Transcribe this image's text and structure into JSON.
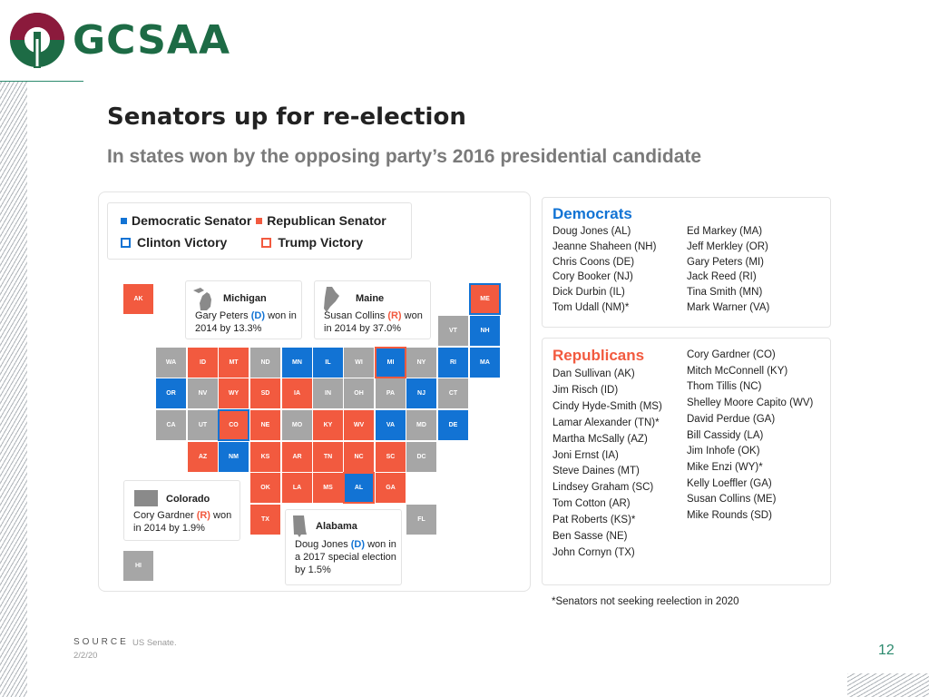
{
  "header": {
    "logo_text": "GCSAA",
    "title": "Senators up for re-election",
    "subtitle": "In states won by the opposing party’s 2016 presidential candidate"
  },
  "colors": {
    "democratic": "#1273d4",
    "republican": "#f25a3f",
    "neutral": "#a6a6a6",
    "brand_green": "#1d6b45",
    "logo_maroon": "#8b1a3c"
  },
  "legend": {
    "dem_senator": "Democratic Senator",
    "rep_senator": "Republican Senator",
    "clinton_victory": "Clinton Victory",
    "trump_victory": "Trump Victory"
  },
  "states": [
    {
      "code": "AK",
      "party": "R",
      "highlight": false
    },
    {
      "code": "ME",
      "party": "R",
      "highlight": true
    },
    {
      "code": "VT",
      "party": "N",
      "highlight": false
    },
    {
      "code": "NH",
      "party": "D",
      "highlight": false
    },
    {
      "code": "WA",
      "party": "N",
      "highlight": false
    },
    {
      "code": "ID",
      "party": "R",
      "highlight": false
    },
    {
      "code": "MT",
      "party": "R",
      "highlight": false
    },
    {
      "code": "ND",
      "party": "N",
      "highlight": false
    },
    {
      "code": "MN",
      "party": "D",
      "highlight": false
    },
    {
      "code": "IL",
      "party": "D",
      "highlight": false
    },
    {
      "code": "WI",
      "party": "N",
      "highlight": false
    },
    {
      "code": "MI",
      "party": "D",
      "highlight": true
    },
    {
      "code": "NY",
      "party": "N",
      "highlight": false
    },
    {
      "code": "RI",
      "party": "D",
      "highlight": false
    },
    {
      "code": "MA",
      "party": "D",
      "highlight": false
    },
    {
      "code": "OR",
      "party": "D",
      "highlight": false
    },
    {
      "code": "NV",
      "party": "N",
      "highlight": false
    },
    {
      "code": "WY",
      "party": "R",
      "highlight": false
    },
    {
      "code": "SD",
      "party": "R",
      "highlight": false
    },
    {
      "code": "IA",
      "party": "R",
      "highlight": false
    },
    {
      "code": "IN",
      "party": "N",
      "highlight": false
    },
    {
      "code": "OH",
      "party": "N",
      "highlight": false
    },
    {
      "code": "PA",
      "party": "N",
      "highlight": false
    },
    {
      "code": "NJ",
      "party": "D",
      "highlight": false
    },
    {
      "code": "CT",
      "party": "N",
      "highlight": false
    },
    {
      "code": "CA",
      "party": "N",
      "highlight": false
    },
    {
      "code": "UT",
      "party": "N",
      "highlight": false
    },
    {
      "code": "CO",
      "party": "R",
      "highlight": true
    },
    {
      "code": "NE",
      "party": "R",
      "highlight": false
    },
    {
      "code": "MO",
      "party": "N",
      "highlight": false
    },
    {
      "code": "KY",
      "party": "R",
      "highlight": false
    },
    {
      "code": "WV",
      "party": "R",
      "highlight": false
    },
    {
      "code": "VA",
      "party": "D",
      "highlight": false
    },
    {
      "code": "MD",
      "party": "N",
      "highlight": false
    },
    {
      "code": "DE",
      "party": "D",
      "highlight": false
    },
    {
      "code": "AZ",
      "party": "R",
      "highlight": false
    },
    {
      "code": "NM",
      "party": "D",
      "highlight": false
    },
    {
      "code": "KS",
      "party": "R",
      "highlight": false
    },
    {
      "code": "AR",
      "party": "R",
      "highlight": false
    },
    {
      "code": "TN",
      "party": "R",
      "highlight": false
    },
    {
      "code": "NC",
      "party": "R",
      "highlight": false
    },
    {
      "code": "SC",
      "party": "R",
      "highlight": false
    },
    {
      "code": "DC",
      "party": "N",
      "highlight": false
    },
    {
      "code": "OK",
      "party": "R",
      "highlight": false
    },
    {
      "code": "LA",
      "party": "R",
      "highlight": false
    },
    {
      "code": "MS",
      "party": "R",
      "highlight": false
    },
    {
      "code": "AL",
      "party": "D",
      "highlight": true
    },
    {
      "code": "GA",
      "party": "R",
      "highlight": false
    },
    {
      "code": "TX",
      "party": "R",
      "highlight": false
    },
    {
      "code": "FL",
      "party": "N",
      "highlight": false
    },
    {
      "code": "HI",
      "party": "N",
      "highlight": false
    }
  ],
  "callouts": {
    "michigan": {
      "title": "Michigan",
      "pre": "Gary Peters ",
      "party": "(D)",
      "post": " won in 2014 by 13.3%"
    },
    "maine": {
      "title": "Maine",
      "pre": "Susan Collins ",
      "party": "(R)",
      "post": " won in 2014 by 37.0%"
    },
    "colorado": {
      "title": "Colorado",
      "pre": "Cory Gardner ",
      "party": "(R)",
      "post": " won in 2014 by 1.9%"
    },
    "alabama": {
      "title": "Alabama",
      "pre": "Doug Jones ",
      "party": "(D)",
      "post": " won in a 2017 special election by 1.5%"
    }
  },
  "democrats": {
    "title": "Democrats",
    "col1": [
      "Doug Jones (AL)",
      "Jeanne Shaheen (NH)",
      "Chris Coons (DE)",
      "Cory Booker (NJ)",
      "Dick Durbin (IL)",
      "Tom Udall (NM)*"
    ],
    "col2": [
      "Ed Markey (MA)",
      "Jeff Merkley (OR)",
      "Gary Peters (MI)",
      "Jack Reed (RI)",
      "Tina Smith (MN)",
      "Mark Warner (VA)"
    ]
  },
  "republicans": {
    "title": "Republicans",
    "col1": [
      "Dan Sullivan (AK)",
      "Jim Risch (ID)",
      "Cindy Hyde-Smith (MS)",
      "Lamar Alexander (TN)*",
      "Martha McSally (AZ)",
      "Joni Ernst (IA)",
      "Steve Daines (MT)",
      "Lindsey Graham (SC)",
      "Tom Cotton (AR)",
      "Pat Roberts (KS)*",
      "Ben Sasse (NE)",
      "John Cornyn (TX)"
    ],
    "col2": [
      "Cory Gardner (CO)",
      "Mitch McConnell (KY)",
      "Thom Tillis (NC)",
      "Shelley Moore Capito (WV)",
      "David Perdue (GA)",
      "Bill Cassidy (LA)",
      "Jim Inhofe (OK)",
      "Mike Enzi (WY)*",
      "Kelly Loeffler (GA)",
      "Susan Collins (ME)",
      "Mike Rounds (SD)"
    ]
  },
  "footnote": "*Senators not seeking reelection in 2020",
  "footer": {
    "source_label": "SOURCE",
    "source_text": "US Senate.",
    "date": "2/2/20",
    "page_number": "12"
  }
}
